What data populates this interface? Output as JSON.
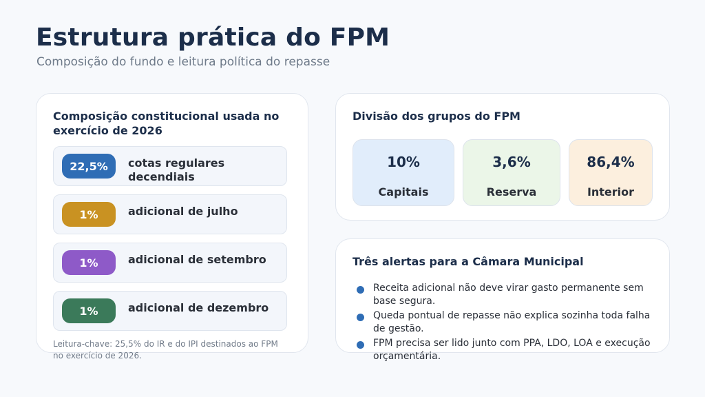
{
  "header": {
    "title": "Estrutura prática do FPM",
    "subtitle": "Composição do fundo e leitura política do repasse"
  },
  "composition": {
    "heading": "Composição constitucional usada no exercício de 2026",
    "items": [
      {
        "value": "22,5%",
        "label": "cotas regulares decendiais",
        "color": "#2f6db5"
      },
      {
        "value": "1%",
        "label": "adicional de julho",
        "color": "#c99222"
      },
      {
        "value": "1%",
        "label": "adicional de setembro",
        "color": "#8e5ac8"
      },
      {
        "value": "1%",
        "label": "adicional de dezembro",
        "color": "#3b7a5a"
      }
    ],
    "note": "Leitura-chave: 25,5% do IR e do IPI destinados ao FPM no exercício de 2026."
  },
  "groups": {
    "heading": "Divisão dos grupos do FPM",
    "items": [
      {
        "value": "10%",
        "label": "Capitais",
        "color": "#e1edfb"
      },
      {
        "value": "3,6%",
        "label": "Reserva",
        "color": "#ebf6e8"
      },
      {
        "value": "86,4%",
        "label": "Interior",
        "color": "#fcefde"
      }
    ]
  },
  "alerts": {
    "heading": "Três alertas para a Câmara Municipal",
    "items": [
      "Receita adicional não deve virar gasto permanente sem base segura.",
      "Queda pontual de repasse não explica sozinha toda falha de gestão.",
      "FPM precisa ser lido junto com PPA, LDO, LOA e execução orçamentária."
    ]
  }
}
